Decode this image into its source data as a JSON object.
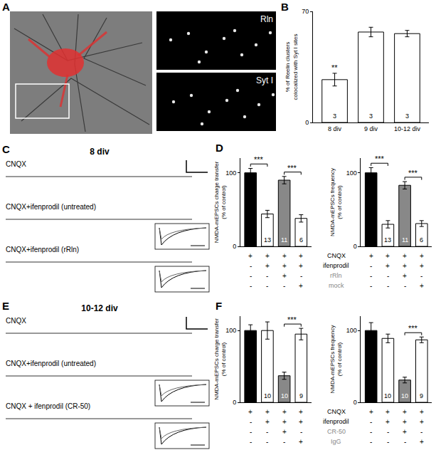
{
  "panel_A": {
    "letter": "A",
    "image_labels": [
      "Rln",
      "Syt I"
    ]
  },
  "panel_C": {
    "letter": "C",
    "title": "8 div",
    "traces": [
      "CNQX",
      "CNQX+ifenprodil (untreated)",
      "CNQX+ifenprodil (rRln)"
    ]
  },
  "panel_E": {
    "letter": "E",
    "title": "10-12 div",
    "traces": [
      "CNQX",
      "CNQX+ifenprodil (untreated)",
      "CNQX + ifenprodil (CR-50)"
    ]
  },
  "chart_data": [
    {
      "letter": "B",
      "type": "bar",
      "categories": [
        "8 div",
        "9 div",
        "10-12 div"
      ],
      "values": [
        27,
        57,
        56
      ],
      "errors": [
        4,
        3,
        2
      ],
      "n": [
        "3",
        "3",
        "3"
      ],
      "colors": [
        "#ffffff",
        "#ffffff",
        "#ffffff"
      ],
      "significance": [
        {
          "bars": [
            0
          ],
          "label": "**"
        }
      ],
      "ylim": [
        0,
        70
      ],
      "yticks": [
        0,
        70
      ],
      "grid": false,
      "ylabel": [
        "% of Reelin clusters",
        "colocalized with Syt I sites"
      ]
    },
    {
      "letter": "D",
      "type": "bar",
      "categories": [
        null,
        null,
        null,
        null
      ],
      "tick_labels": "y",
      "colors": [
        "#000000",
        "#ffffff",
        "#888888",
        "#ffffff"
      ],
      "n": [
        null,
        "13",
        "11",
        "6"
      ],
      "ylim": [
        0,
        120
      ],
      "yticks": [
        0,
        100
      ],
      "grid": false,
      "subplots": [
        {
          "ylabel": [
            "NMDA-mEPSCs charge transfer",
            "(% of control)"
          ],
          "values": [
            100,
            44,
            90,
            38
          ],
          "errors": [
            6,
            5,
            5,
            5
          ],
          "significance": [
            {
              "bars": [
                0,
                1
              ],
              "label": "***"
            },
            {
              "bars": [
                2,
                3
              ],
              "label": "***"
            }
          ]
        },
        {
          "ylabel": [
            "NMDA-mEPSCs frequency",
            "(% of control)"
          ],
          "values": [
            100,
            30,
            83,
            31
          ],
          "errors": [
            7,
            5,
            5,
            4
          ],
          "significance": [
            {
              "bars": [
                0,
                1
              ],
              "label": "***"
            },
            {
              "bars": [
                2,
                3
              ],
              "label": "***"
            }
          ]
        }
      ],
      "conditions": [
        {
          "label": "CNQX",
          "color": "#000000",
          "marks": [
            "+",
            "+",
            "+",
            "+"
          ]
        },
        {
          "label": "ifenprodil",
          "color": "#000000",
          "marks": [
            "-",
            "+",
            "+",
            "+"
          ]
        },
        {
          "label": "rRln",
          "color": "#888888",
          "marks": [
            "-",
            "-",
            "+",
            "-"
          ]
        },
        {
          "label": "mock",
          "color": "#888888",
          "marks": [
            "-",
            "-",
            "-",
            "+"
          ]
        }
      ]
    },
    {
      "letter": "F",
      "type": "bar",
      "categories": [
        null,
        null,
        null,
        null
      ],
      "tick_labels": "y",
      "colors": [
        "#000000",
        "#ffffff",
        "#888888",
        "#ffffff"
      ],
      "n": [
        null,
        "10",
        "10",
        "9"
      ],
      "ylim": [
        0,
        120
      ],
      "yticks": [
        0,
        100
      ],
      "grid": false,
      "subplots": [
        {
          "ylabel": [
            "NMDA-mEPSCs charge transfer",
            "(% of control)"
          ],
          "values": [
            100,
            100,
            37,
            95
          ],
          "errors": [
            8,
            12,
            5,
            8
          ],
          "significance": [
            {
              "bars": [
                2,
                3
              ],
              "label": "***"
            }
          ]
        },
        {
          "ylabel": [
            "NMDA-mEPSCs frequency",
            "(% of control)"
          ],
          "values": [
            100,
            89,
            31,
            87
          ],
          "errors": [
            11,
            6,
            4,
            4
          ],
          "significance": [
            {
              "bars": [
                2,
                3
              ],
              "label": "***"
            }
          ]
        }
      ],
      "conditions": [
        {
          "label": "CNQX",
          "color": "#000000",
          "marks": [
            "+",
            "+",
            "+",
            "+"
          ]
        },
        {
          "label": "ifenprodil",
          "color": "#000000",
          "marks": [
            "-",
            "+",
            "+",
            "+"
          ]
        },
        {
          "label": "CR-50",
          "color": "#888888",
          "marks": [
            "-",
            "-",
            "+",
            "-"
          ]
        },
        {
          "label": "IgG",
          "color": "#888888",
          "marks": [
            "-",
            "-",
            "-",
            "+"
          ]
        }
      ]
    }
  ]
}
